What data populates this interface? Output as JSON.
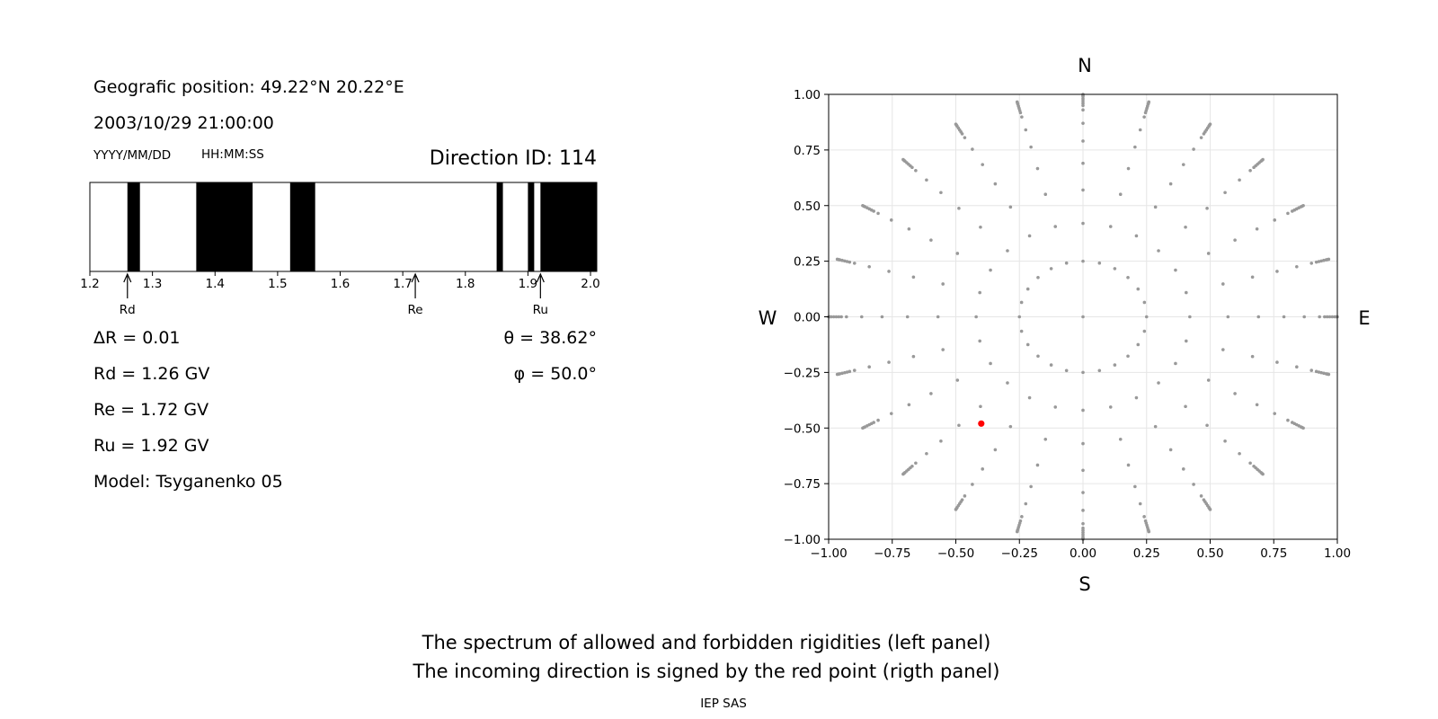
{
  "left_panel": {
    "geo_position": "Geografic position: 49.22°N 20.22°E",
    "datetime": "2003/10/29 21:00:00",
    "date_format": "YYYY/MM/DD",
    "time_format": "HH:MM:SS",
    "direction_id": "Direction ID: 114",
    "delta_r": "ΔR = 0.01",
    "theta": "θ = 38.62°",
    "phi": "φ = 50.0°",
    "rd": "Rd = 1.26 GV",
    "re": "Re = 1.72 GV",
    "ru": "Ru = 1.92 GV",
    "model": "Model: Tsyganenko 05"
  },
  "right_panel": {
    "compass": {
      "north": "N",
      "south": "S",
      "west": "W",
      "east": "E"
    }
  },
  "footer": {
    "caption_line1": "The spectrum of allowed and forbidden rigidities (left panel)",
    "caption_line2": "The incoming direction is signed by the red point (rigth panel)",
    "credit": "IEP SAS"
  },
  "chart_data": [
    {
      "type": "bar",
      "description": "rigidity spectrum; forbidden intervals drawn black",
      "xlim": [
        1.2,
        2.01
      ],
      "xticks": [
        "1.2",
        "1.3",
        "1.4",
        "1.5",
        "1.6",
        "1.7",
        "1.8",
        "1.9",
        "2.0"
      ],
      "forbidden_intervals": [
        [
          1.26,
          1.28
        ],
        [
          1.37,
          1.46
        ],
        [
          1.52,
          1.56
        ],
        [
          1.85,
          1.86
        ],
        [
          1.9,
          1.91
        ],
        [
          1.92,
          2.01
        ]
      ],
      "markers": [
        {
          "label": "Rd",
          "value": 1.26
        },
        {
          "label": "Re",
          "value": 1.72
        },
        {
          "label": "Ru",
          "value": 1.92
        }
      ]
    },
    {
      "type": "scatter",
      "xlim": [
        -1.0,
        1.0
      ],
      "ylim": [
        -1.0,
        1.0
      ],
      "xticks": [
        "−1.00",
        "−0.75",
        "−0.50",
        "−0.25",
        "0.00",
        "0.25",
        "0.50",
        "0.75",
        "1.00"
      ],
      "yticks": [
        "−1.00",
        "−0.75",
        "−0.50",
        "−0.25",
        "0.00",
        "0.25",
        "0.50",
        "0.75",
        "1.00"
      ],
      "grid": true,
      "point_color": "#999999",
      "highlight_color": "#ff0000",
      "grid_rings": [
        0.25,
        0.42,
        0.57,
        0.69,
        0.79,
        0.87,
        0.93,
        0.97,
        0.99,
        1.0
      ],
      "grid_spokes_deg": [
        0,
        15,
        30,
        45,
        60,
        75,
        90,
        105,
        120,
        135,
        150,
        165,
        180,
        195,
        210,
        225,
        240,
        255,
        270,
        285,
        300,
        315,
        330,
        345
      ],
      "outer_sub_ring_radii": [
        0.95,
        0.96,
        0.97,
        0.98,
        0.99,
        0.995,
        1.0
      ],
      "ring_points_0_25": 24,
      "center_point": [
        0,
        0
      ],
      "highlight_point": {
        "x": -0.4,
        "y": -0.48
      }
    }
  ]
}
